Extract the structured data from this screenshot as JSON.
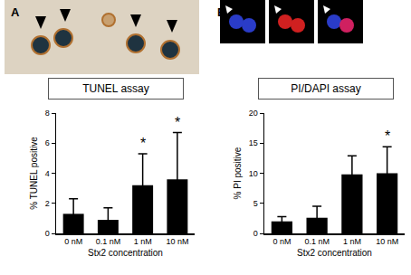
{
  "chart_data": [
    {
      "type": "bar",
      "panel": "A",
      "title": "TUNEL assay",
      "categories": [
        "0 nM",
        "0.1 nM",
        "1 nM",
        "10 nM"
      ],
      "values": [
        1.3,
        0.9,
        3.2,
        3.6
      ],
      "errors": [
        1.0,
        0.8,
        2.1,
        3.1
      ],
      "color": "#000000",
      "x_label": "Stx2 concentration",
      "y_label": "% TUNEL positive",
      "ylim": [
        0,
        8
      ],
      "yticks": [
        0,
        2,
        4,
        6,
        8
      ],
      "annotations": [
        {
          "text": "*",
          "category": "1 nM"
        },
        {
          "text": "*",
          "category": "10 nM"
        }
      ]
    },
    {
      "type": "bar",
      "panel": "B",
      "title": "PI/DAPI assay",
      "categories": [
        "0 nM",
        "0.1 nM",
        "1 nM",
        "10 nM"
      ],
      "values": [
        2.0,
        2.6,
        9.8,
        10.0
      ],
      "errors": [
        0.8,
        1.9,
        3.1,
        4.4
      ],
      "color": "#000000",
      "x_label": "Stx2 concentration",
      "y_label": "% PI positive",
      "ylim": [
        0,
        20
      ],
      "yticks": [
        0,
        5,
        10,
        15,
        20
      ],
      "annotations": [
        {
          "text": "*",
          "category": "10 nM"
        }
      ]
    }
  ]
}
